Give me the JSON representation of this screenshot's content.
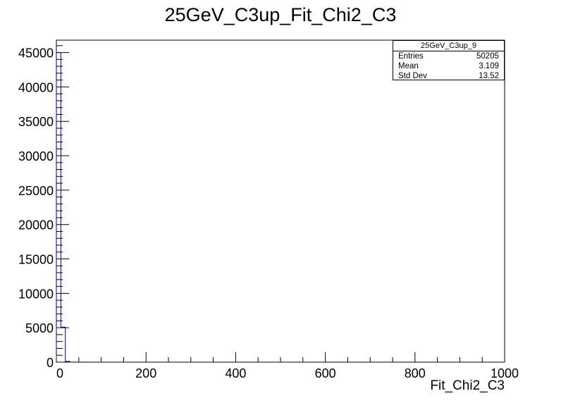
{
  "chart_data": {
    "type": "bar",
    "title": "25GeV_C3up_Fit_Chi2_C3",
    "xlabel": "Fit_Chi2_C3",
    "ylabel": "",
    "xlim": [
      0,
      1000
    ],
    "ylim": [
      0,
      46800
    ],
    "x_ticks": [
      0,
      200,
      400,
      600,
      800,
      1000
    ],
    "x_tick_labels": [
      "0",
      "200",
      "400",
      "600",
      "800",
      "1000"
    ],
    "y_ticks": [
      0,
      5000,
      10000,
      15000,
      20000,
      25000,
      30000,
      35000,
      40000,
      45000
    ],
    "y_tick_labels": [
      "0",
      "5000",
      "10000",
      "15000",
      "20000",
      "25000",
      "30000",
      "35000",
      "40000",
      "45000"
    ],
    "bin_width": 10,
    "bins": [
      {
        "x0": 0,
        "x1": 10,
        "value": 45000
      },
      {
        "x0": 10,
        "x1": 20,
        "value": 5100
      },
      {
        "x0": 20,
        "x1": 30,
        "value": 100
      }
    ],
    "line_color": "#000080",
    "grid": false
  },
  "stats": {
    "title": "25GeV_C3up_9",
    "rows": [
      {
        "label": "Entries",
        "value": "50205"
      },
      {
        "label": "Mean",
        "value": "3.109"
      },
      {
        "label": "Std Dev",
        "value": "13.52"
      }
    ]
  }
}
